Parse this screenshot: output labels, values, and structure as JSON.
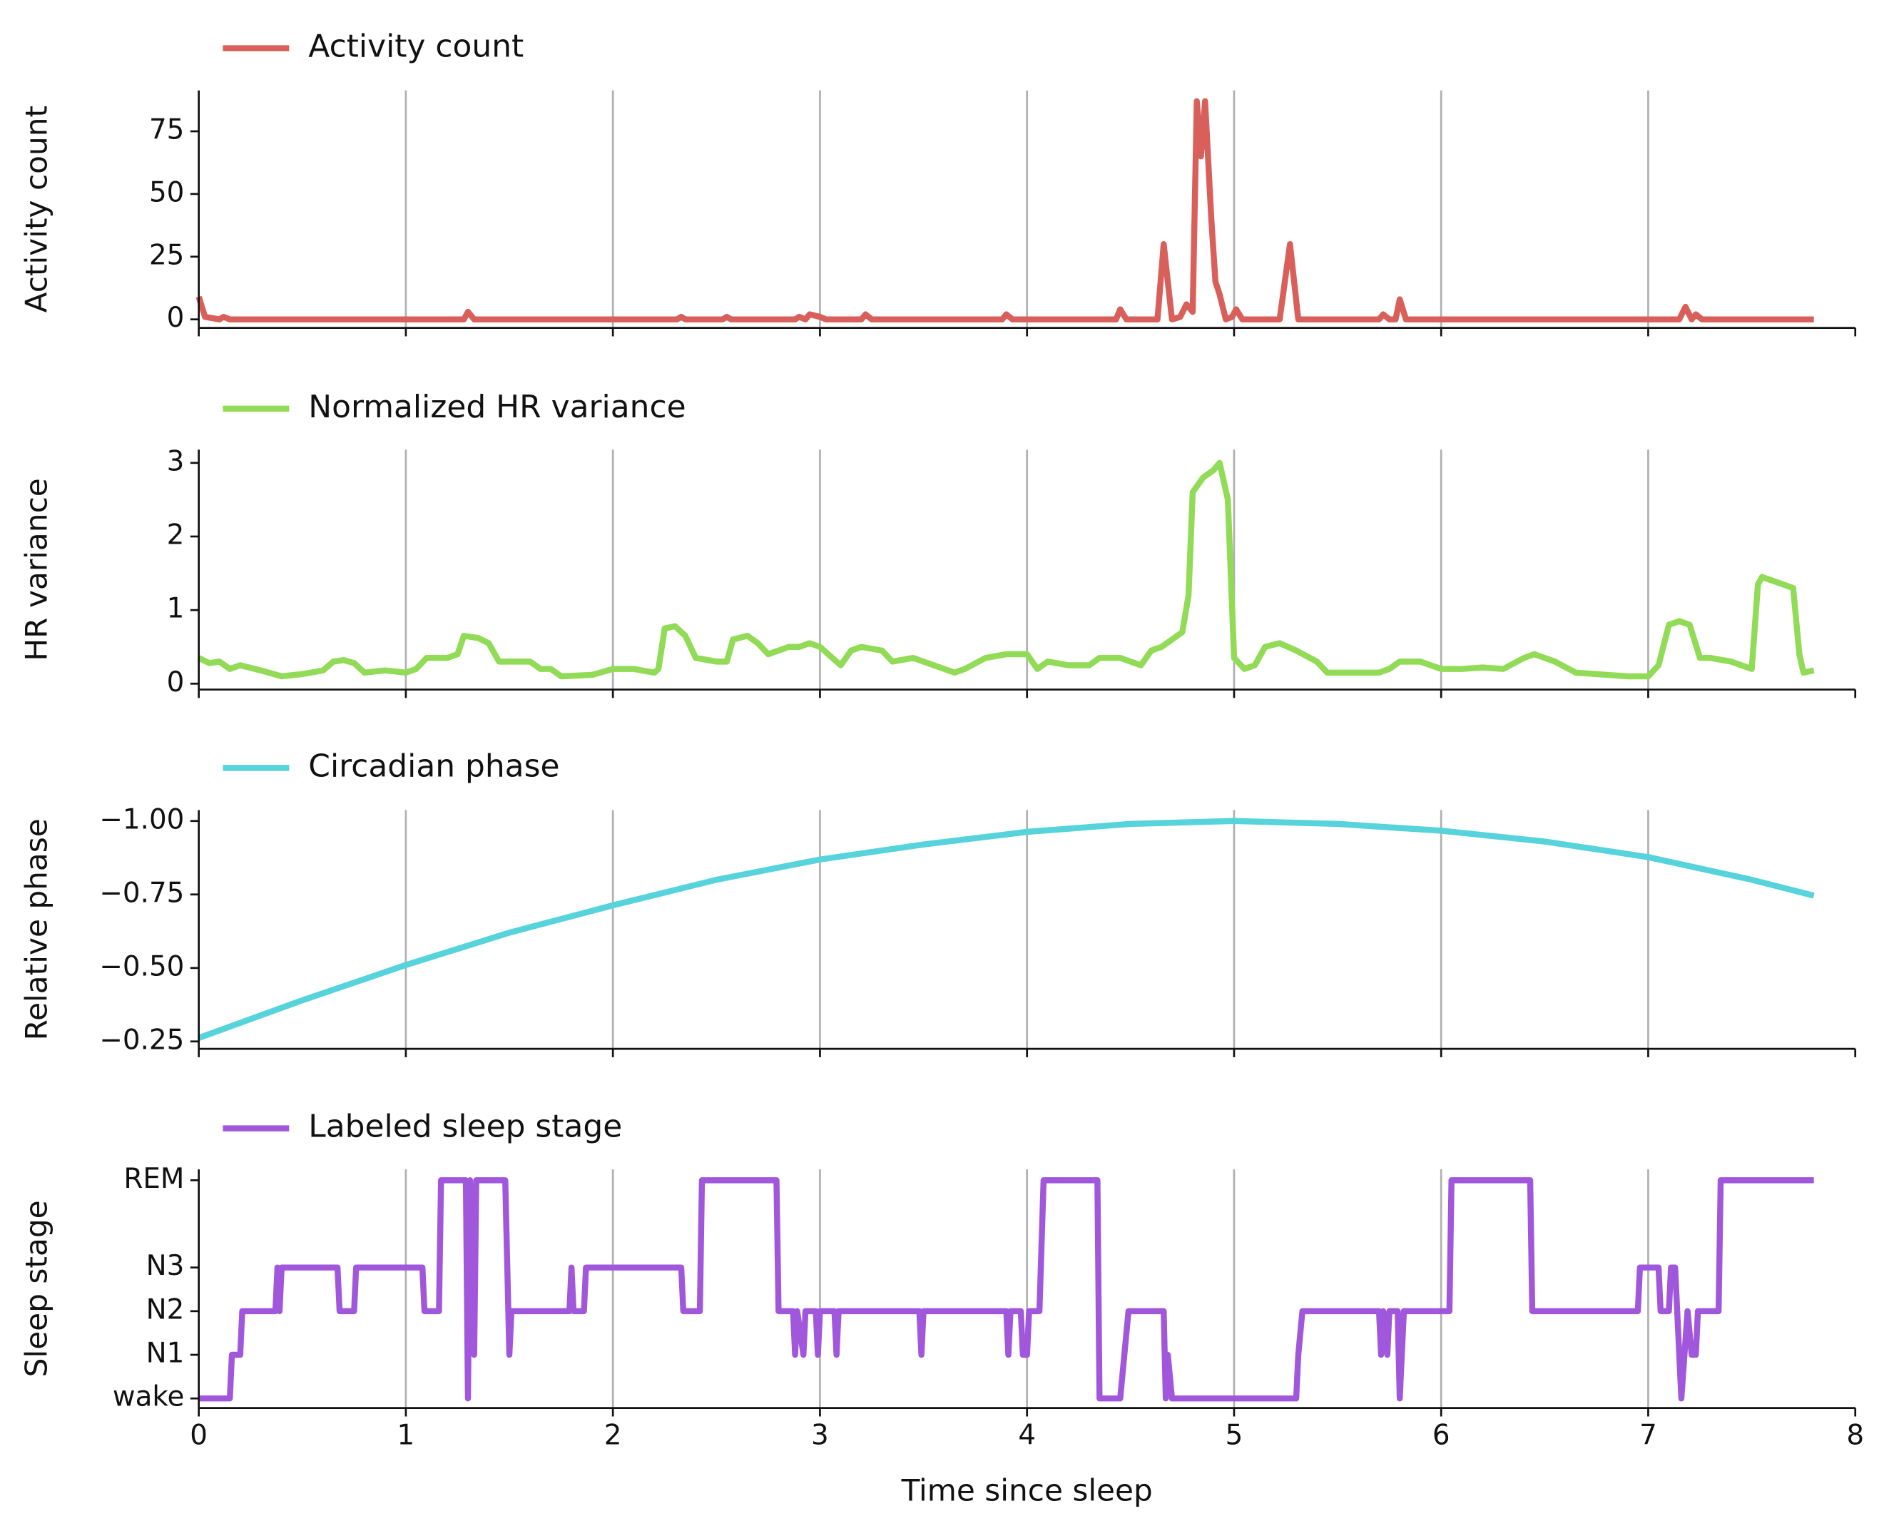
{
  "chart_data": [
    {
      "type": "line",
      "ylabel": "Activity count",
      "grid": "x",
      "xlim": [
        0,
        8
      ],
      "ylim": [
        -3.4,
        91.3
      ],
      "yticks": [
        0,
        25,
        50,
        75
      ],
      "x": [
        0,
        0.03,
        0.1,
        0.12,
        0.15,
        1.28,
        1.3,
        1.33,
        2.31,
        2.33,
        2.35,
        2.53,
        2.55,
        2.57,
        2.88,
        2.9,
        2.93,
        2.95,
        3.0,
        3.03,
        3.2,
        3.22,
        3.25,
        3.88,
        3.9,
        3.93,
        4.43,
        4.45,
        4.48,
        4.63,
        4.66,
        4.7,
        4.74,
        4.77,
        4.8,
        4.82,
        4.84,
        4.86,
        4.89,
        4.91,
        4.93,
        4.96,
        4.99,
        5.01,
        5.04,
        5.22,
        5.27,
        5.31,
        5.7,
        5.72,
        5.75,
        5.78,
        5.8,
        5.83,
        7.15,
        7.18,
        7.21,
        7.23,
        7.26,
        7.8
      ],
      "series": [
        {
          "name": "Activity count",
          "color": "#d9605a",
          "values": [
            9,
            1,
            0,
            1,
            0,
            0,
            3,
            0,
            0,
            1,
            0,
            0,
            1,
            0,
            0,
            1,
            0,
            2,
            1,
            0,
            0,
            2,
            0,
            0,
            2,
            0,
            0,
            4,
            0,
            0,
            30,
            0,
            1,
            6,
            3,
            87,
            65,
            87,
            40,
            15,
            10,
            0,
            1,
            4,
            0,
            0,
            30,
            0,
            0,
            2,
            0,
            0,
            8,
            0,
            0,
            5,
            0,
            2,
            0,
            0
          ]
        }
      ]
    },
    {
      "type": "line",
      "ylabel": "HR variance",
      "grid": "x",
      "xlim": [
        0,
        8
      ],
      "ylim": [
        -0.08,
        3.18
      ],
      "yticks": [
        0,
        1,
        2,
        3
      ],
      "x": [
        0,
        0.05,
        0.1,
        0.15,
        0.2,
        0.3,
        0.4,
        0.5,
        0.6,
        0.65,
        0.7,
        0.75,
        0.8,
        0.9,
        1.0,
        1.05,
        1.1,
        1.2,
        1.25,
        1.28,
        1.35,
        1.4,
        1.45,
        1.6,
        1.65,
        1.7,
        1.75,
        1.9,
        2.0,
        2.1,
        2.2,
        2.22,
        2.25,
        2.3,
        2.35,
        2.4,
        2.5,
        2.55,
        2.58,
        2.65,
        2.7,
        2.75,
        2.85,
        2.9,
        2.95,
        3.0,
        3.1,
        3.15,
        3.2,
        3.3,
        3.35,
        3.45,
        3.55,
        3.65,
        3.7,
        3.8,
        3.9,
        4.0,
        4.05,
        4.1,
        4.2,
        4.3,
        4.35,
        4.45,
        4.55,
        4.6,
        4.65,
        4.7,
        4.75,
        4.78,
        4.8,
        4.85,
        4.9,
        4.93,
        4.97,
        5.0,
        5.05,
        5.1,
        5.15,
        5.22,
        5.3,
        5.4,
        5.45,
        5.6,
        5.7,
        5.75,
        5.8,
        5.9,
        6.0,
        6.1,
        6.2,
        6.3,
        6.4,
        6.45,
        6.55,
        6.65,
        6.8,
        6.9,
        7.0,
        7.05,
        7.1,
        7.15,
        7.2,
        7.25,
        7.3,
        7.4,
        7.5,
        7.53,
        7.55,
        7.6,
        7.7,
        7.73,
        7.75,
        7.8
      ],
      "series": [
        {
          "name": "Normalized HR variance",
          "color": "#91db57",
          "values": [
            0.35,
            0.28,
            0.3,
            0.2,
            0.25,
            0.18,
            0.1,
            0.13,
            0.18,
            0.3,
            0.32,
            0.28,
            0.15,
            0.18,
            0.15,
            0.2,
            0.35,
            0.35,
            0.4,
            0.65,
            0.62,
            0.55,
            0.3,
            0.3,
            0.2,
            0.2,
            0.1,
            0.12,
            0.2,
            0.2,
            0.15,
            0.2,
            0.75,
            0.78,
            0.65,
            0.35,
            0.3,
            0.3,
            0.6,
            0.65,
            0.55,
            0.4,
            0.5,
            0.5,
            0.55,
            0.5,
            0.25,
            0.45,
            0.5,
            0.45,
            0.3,
            0.35,
            0.25,
            0.15,
            0.2,
            0.35,
            0.4,
            0.4,
            0.2,
            0.3,
            0.25,
            0.25,
            0.35,
            0.35,
            0.25,
            0.45,
            0.5,
            0.6,
            0.7,
            1.2,
            2.6,
            2.8,
            2.9,
            3.0,
            2.5,
            0.35,
            0.2,
            0.25,
            0.5,
            0.55,
            0.45,
            0.3,
            0.15,
            0.15,
            0.15,
            0.2,
            0.3,
            0.3,
            0.2,
            0.2,
            0.22,
            0.2,
            0.35,
            0.4,
            0.3,
            0.15,
            0.12,
            0.1,
            0.1,
            0.25,
            0.8,
            0.85,
            0.8,
            0.35,
            0.35,
            0.3,
            0.2,
            1.35,
            1.45,
            1.4,
            1.3,
            0.4,
            0.15,
            0.18
          ]
        }
      ]
    },
    {
      "type": "line",
      "ylabel": "Relative phase",
      "grid": "x",
      "xlim": [
        0,
        8
      ],
      "ylim": [
        -0.225,
        -1.037
      ],
      "yticks": [
        {
          "value": -0.25,
          "label": "−0.25"
        },
        {
          "value": -0.5,
          "label": "−0.50"
        },
        {
          "value": -0.75,
          "label": "−0.75"
        },
        {
          "value": -1,
          "label": "−1.00"
        }
      ],
      "x": [
        0,
        0.5,
        1,
        1.5,
        2,
        2.5,
        3,
        3.5,
        4,
        4.5,
        5,
        5.5,
        6,
        6.5,
        7,
        7.5,
        7.8
      ],
      "series": [
        {
          "name": "Circadian phase",
          "color": "#57d3db",
          "values": [
            -0.262,
            -0.39,
            -0.51,
            -0.62,
            -0.713,
            -0.8,
            -0.869,
            -0.92,
            -0.963,
            -0.99,
            -1,
            -0.99,
            -0.967,
            -0.93,
            -0.877,
            -0.8,
            -0.746
          ]
        }
      ]
    },
    {
      "type": "line",
      "ylabel": "Sleep stage",
      "xlabel": "Time since sleep",
      "grid": "x",
      "xlim": [
        0,
        8
      ],
      "ylim": [
        -0.22,
        5.25
      ],
      "xticks": [
        0,
        1,
        2,
        3,
        4,
        5,
        6,
        7,
        8
      ],
      "yticks": [
        {
          "value": 0,
          "label": "wake"
        },
        {
          "value": 1,
          "label": "N1"
        },
        {
          "value": 2,
          "label": "N2"
        },
        {
          "value": 3,
          "label": "N3"
        },
        {
          "value": 5,
          "label": "REM"
        }
      ],
      "x": [
        0,
        0.15,
        0.16,
        0.2,
        0.21,
        0.37,
        0.38,
        0.39,
        0.4,
        0.67,
        0.68,
        0.75,
        0.76,
        1.08,
        1.09,
        1.16,
        1.17,
        1.29,
        1.3,
        1.31,
        1.33,
        1.34,
        1.48,
        1.5,
        1.51,
        1.79,
        1.8,
        1.81,
        1.86,
        1.87,
        2.33,
        2.34,
        2.42,
        2.43,
        2.79,
        2.8,
        2.87,
        2.88,
        2.89,
        2.92,
        2.93,
        2.98,
        2.99,
        3.0,
        3.07,
        3.08,
        3.09,
        3.48,
        3.49,
        3.5,
        3.9,
        3.91,
        3.92,
        3.97,
        3.98,
        4.0,
        4.01,
        4.06,
        4.08,
        4.34,
        4.35,
        4.45,
        4.47,
        4.49,
        4.66,
        4.67,
        4.68,
        4.7,
        5.3,
        5.31,
        5.33,
        5.7,
        5.71,
        5.72,
        5.74,
        5.75,
        5.79,
        5.8,
        5.82,
        6.04,
        6.05,
        6.43,
        6.44,
        6.95,
        6.96,
        7.05,
        7.06,
        7.1,
        7.11,
        7.13,
        7.16,
        7.19,
        7.21,
        7.23,
        7.24,
        7.34,
        7.35,
        7.8
      ],
      "series": [
        {
          "name": "Labeled sleep stage",
          "color": "#a157db",
          "values": [
            0,
            0,
            1,
            1,
            2,
            2,
            3,
            2,
            3,
            3,
            2,
            2,
            3,
            3,
            2,
            2,
            5,
            5,
            0,
            5,
            1,
            5,
            5,
            1,
            2,
            2,
            3,
            2,
            2,
            3,
            3,
            2,
            2,
            5,
            5,
            2,
            2,
            1,
            2,
            1,
            2,
            2,
            1,
            2,
            2,
            1,
            2,
            2,
            1,
            2,
            2,
            1,
            2,
            2,
            1,
            1,
            2,
            2,
            5,
            5,
            0,
            0,
            1,
            2,
            2,
            0,
            1,
            0,
            0,
            1,
            2,
            2,
            1,
            2,
            1,
            2,
            2,
            0,
            2,
            2,
            5,
            5,
            2,
            2,
            3,
            3,
            2,
            2,
            3,
            3,
            0,
            2,
            1,
            1,
            2,
            2,
            5,
            5
          ]
        }
      ]
    }
  ]
}
